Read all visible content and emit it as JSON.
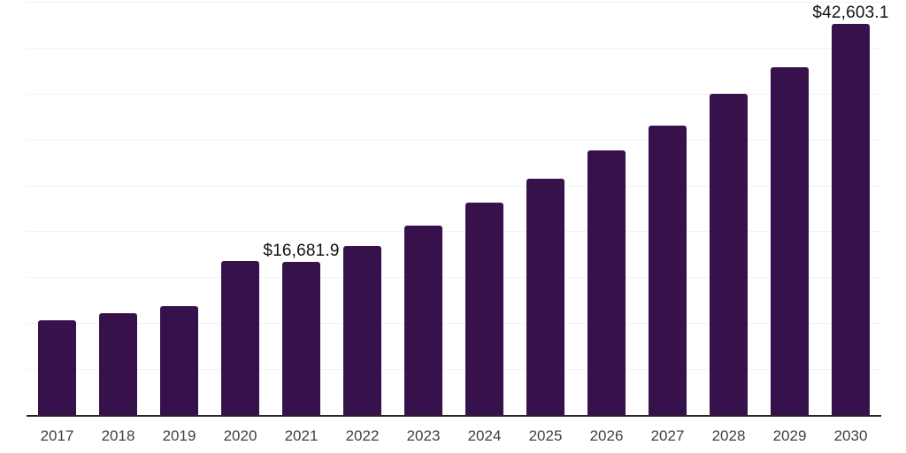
{
  "chart_data": {
    "type": "bar",
    "title": "",
    "xlabel": "",
    "ylabel": "",
    "categories": [
      "2017",
      "2018",
      "2019",
      "2020",
      "2021",
      "2022",
      "2023",
      "2024",
      "2025",
      "2026",
      "2027",
      "2028",
      "2029",
      "2030"
    ],
    "values": [
      10350,
      11100,
      11900,
      16750,
      16681.9,
      18450,
      20650,
      23100,
      25750,
      28800,
      31550,
      35000,
      37900,
      42603.1
    ],
    "data_labels": [
      "",
      "",
      "",
      "",
      "$16,681.9",
      "",
      "",
      "",
      "",
      "",
      "",
      "",
      "",
      "$42,603.1"
    ],
    "ylim": [
      0,
      45000
    ],
    "gridline_step": 5000,
    "grid_on": true,
    "legend": "none",
    "colors": {
      "bar": "#36114C",
      "gridline": "#f2f2f2",
      "axis_line": "#262626",
      "x_label_text": "#404040",
      "data_label_text": "#111111"
    }
  }
}
